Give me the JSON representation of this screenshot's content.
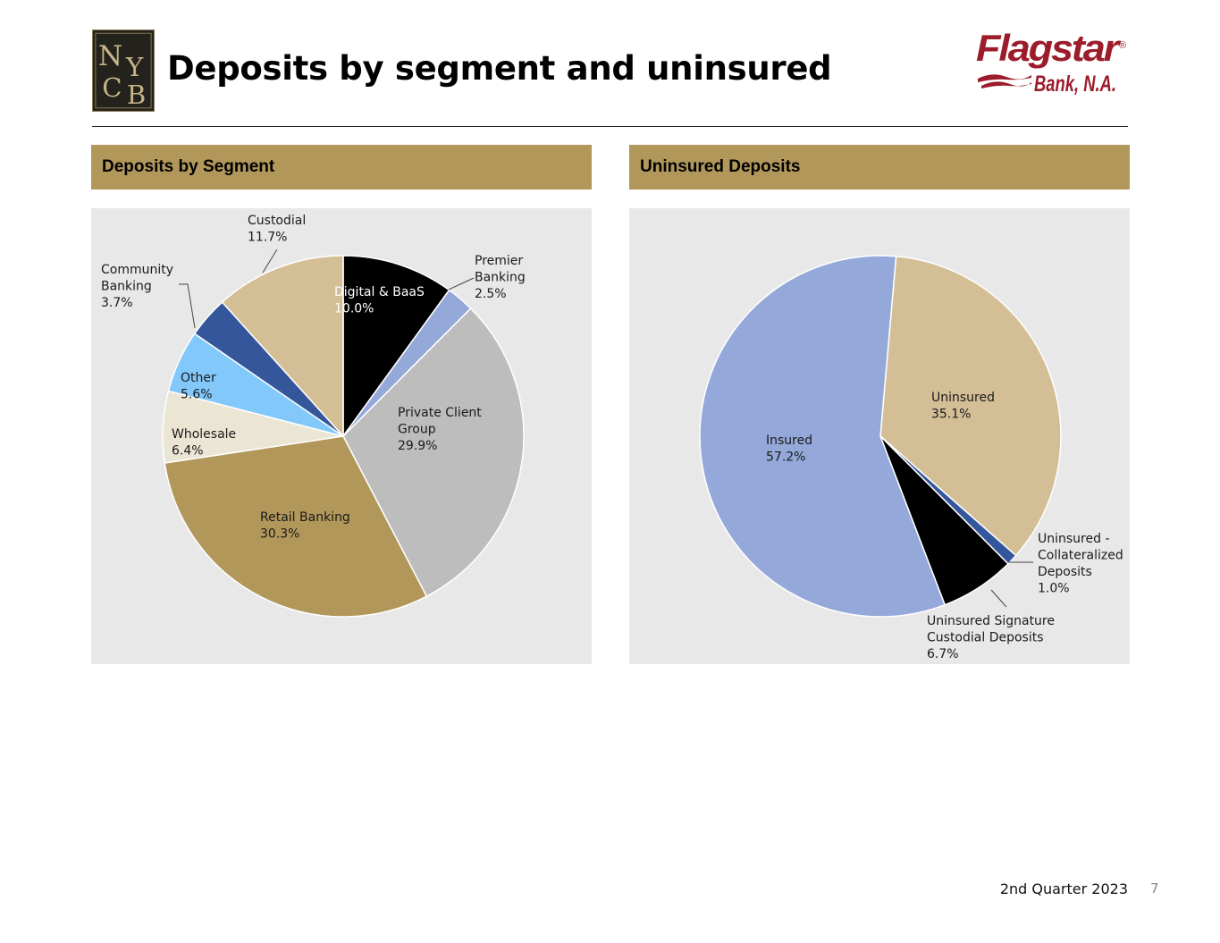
{
  "header": {
    "title": "Deposits by segment and uninsured",
    "left_logo": {
      "name": "nycb-logo",
      "text": "NYCB",
      "colors": {
        "background": "#24221d",
        "letters": "#c6b487"
      }
    },
    "right_logo": {
      "name": "flagstar-logo",
      "text_main": "Flagstar",
      "registered": "®",
      "text_sub": "Bank, N.A.",
      "color": "#9c1c2b"
    }
  },
  "footer": {
    "quarter": "2nd Quarter 2023",
    "page_number": "7"
  },
  "colors": {
    "panel_header": "#b2975b",
    "panel_background": "#e8e8e8",
    "rule": "#222222"
  },
  "chart_data": [
    {
      "type": "pie",
      "title": "Deposits by Segment",
      "start_angle_deg": 0,
      "direction": "clockwise",
      "slices": [
        {
          "label": "Digital & BaaS",
          "value": 10.0,
          "display": "10.0%",
          "color": "#000000",
          "label_color": "#ffffff"
        },
        {
          "label": "Premier Banking",
          "value": 2.5,
          "display": "2.5%",
          "color": "#94a9da"
        },
        {
          "label": "Private Client Group",
          "value": 29.9,
          "display": "29.9%",
          "color": "#bdbdbd"
        },
        {
          "label": "Retail Banking",
          "value": 30.3,
          "display": "30.3%",
          "color": "#b2975b"
        },
        {
          "label": "Wholesale",
          "value": 6.4,
          "display": "6.4%",
          "color": "#ebe5d3"
        },
        {
          "label": "Other",
          "value": 5.6,
          "display": "5.6%",
          "color": "#82c8fb"
        },
        {
          "label": "Community Banking",
          "value": 3.7,
          "display": "3.7%",
          "color": "#34579c"
        },
        {
          "label": "Custodial",
          "value": 11.7,
          "display": "11.7%",
          "color": "#d4be96"
        }
      ]
    },
    {
      "type": "pie",
      "title": "Uninsured Deposits",
      "start_angle_deg": 5,
      "direction": "clockwise",
      "slices": [
        {
          "label": "Uninsured",
          "value": 35.1,
          "display": "35.1%",
          "color": "#d4be96"
        },
        {
          "label": "Uninsured - Collateralized Deposits",
          "value": 1.0,
          "display": "1.0%",
          "color": "#34579c"
        },
        {
          "label": "Uninsured Signature Custodial Deposits",
          "value": 6.7,
          "display": "6.7%",
          "color": "#000000"
        },
        {
          "label": "Insured",
          "value": 57.2,
          "display": "57.2%",
          "color": "#94a9da"
        }
      ]
    }
  ]
}
